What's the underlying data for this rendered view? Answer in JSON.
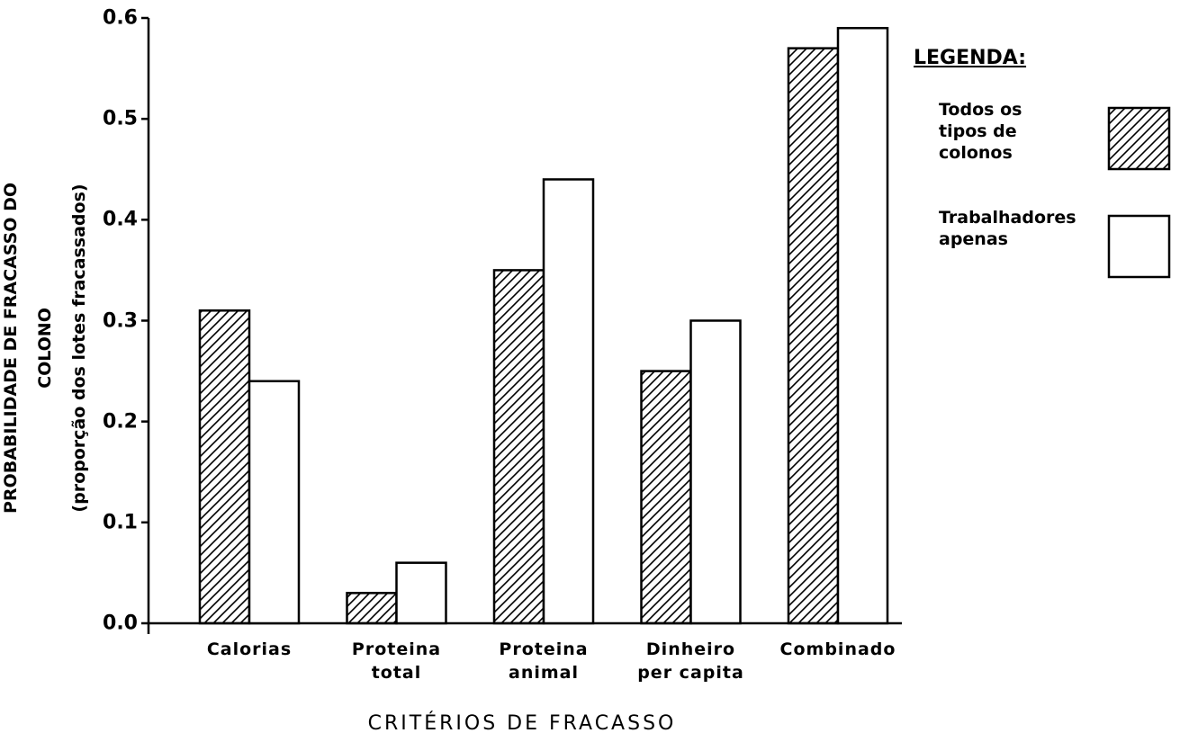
{
  "chart_data": {
    "type": "bar",
    "xlabel": "CRITÉRIOS DE FRACASSO",
    "ylabel": "PROBABILIDADE DE FRACASSO DO COLONO\n(proporção dos lotes fracassados)",
    "legend_title": "LEGENDA:",
    "legend": "right",
    "categories": [
      "Calorias",
      "Proteina\ntotal",
      "Proteina\nanimal",
      "Dinheiro\nper capita",
      "Combinado"
    ],
    "series": [
      {
        "name": "Todos os\ntipos de\ncolonos",
        "color": "#000000",
        "hatch": true,
        "values": [
          0.31,
          0.03,
          0.35,
          0.25,
          0.57
        ]
      },
      {
        "name": "Trabalhadores\napenas",
        "color": "#000000",
        "hatch": false,
        "values": [
          0.24,
          0.06,
          0.44,
          0.3,
          0.59
        ]
      }
    ],
    "ylim": [
      0,
      0.6
    ],
    "yticks": [
      {
        "value": 0,
        "label": "0.0"
      },
      0.1,
      0.2,
      0.3,
      0.4,
      0.5,
      0.6
    ],
    "grid": false
  }
}
